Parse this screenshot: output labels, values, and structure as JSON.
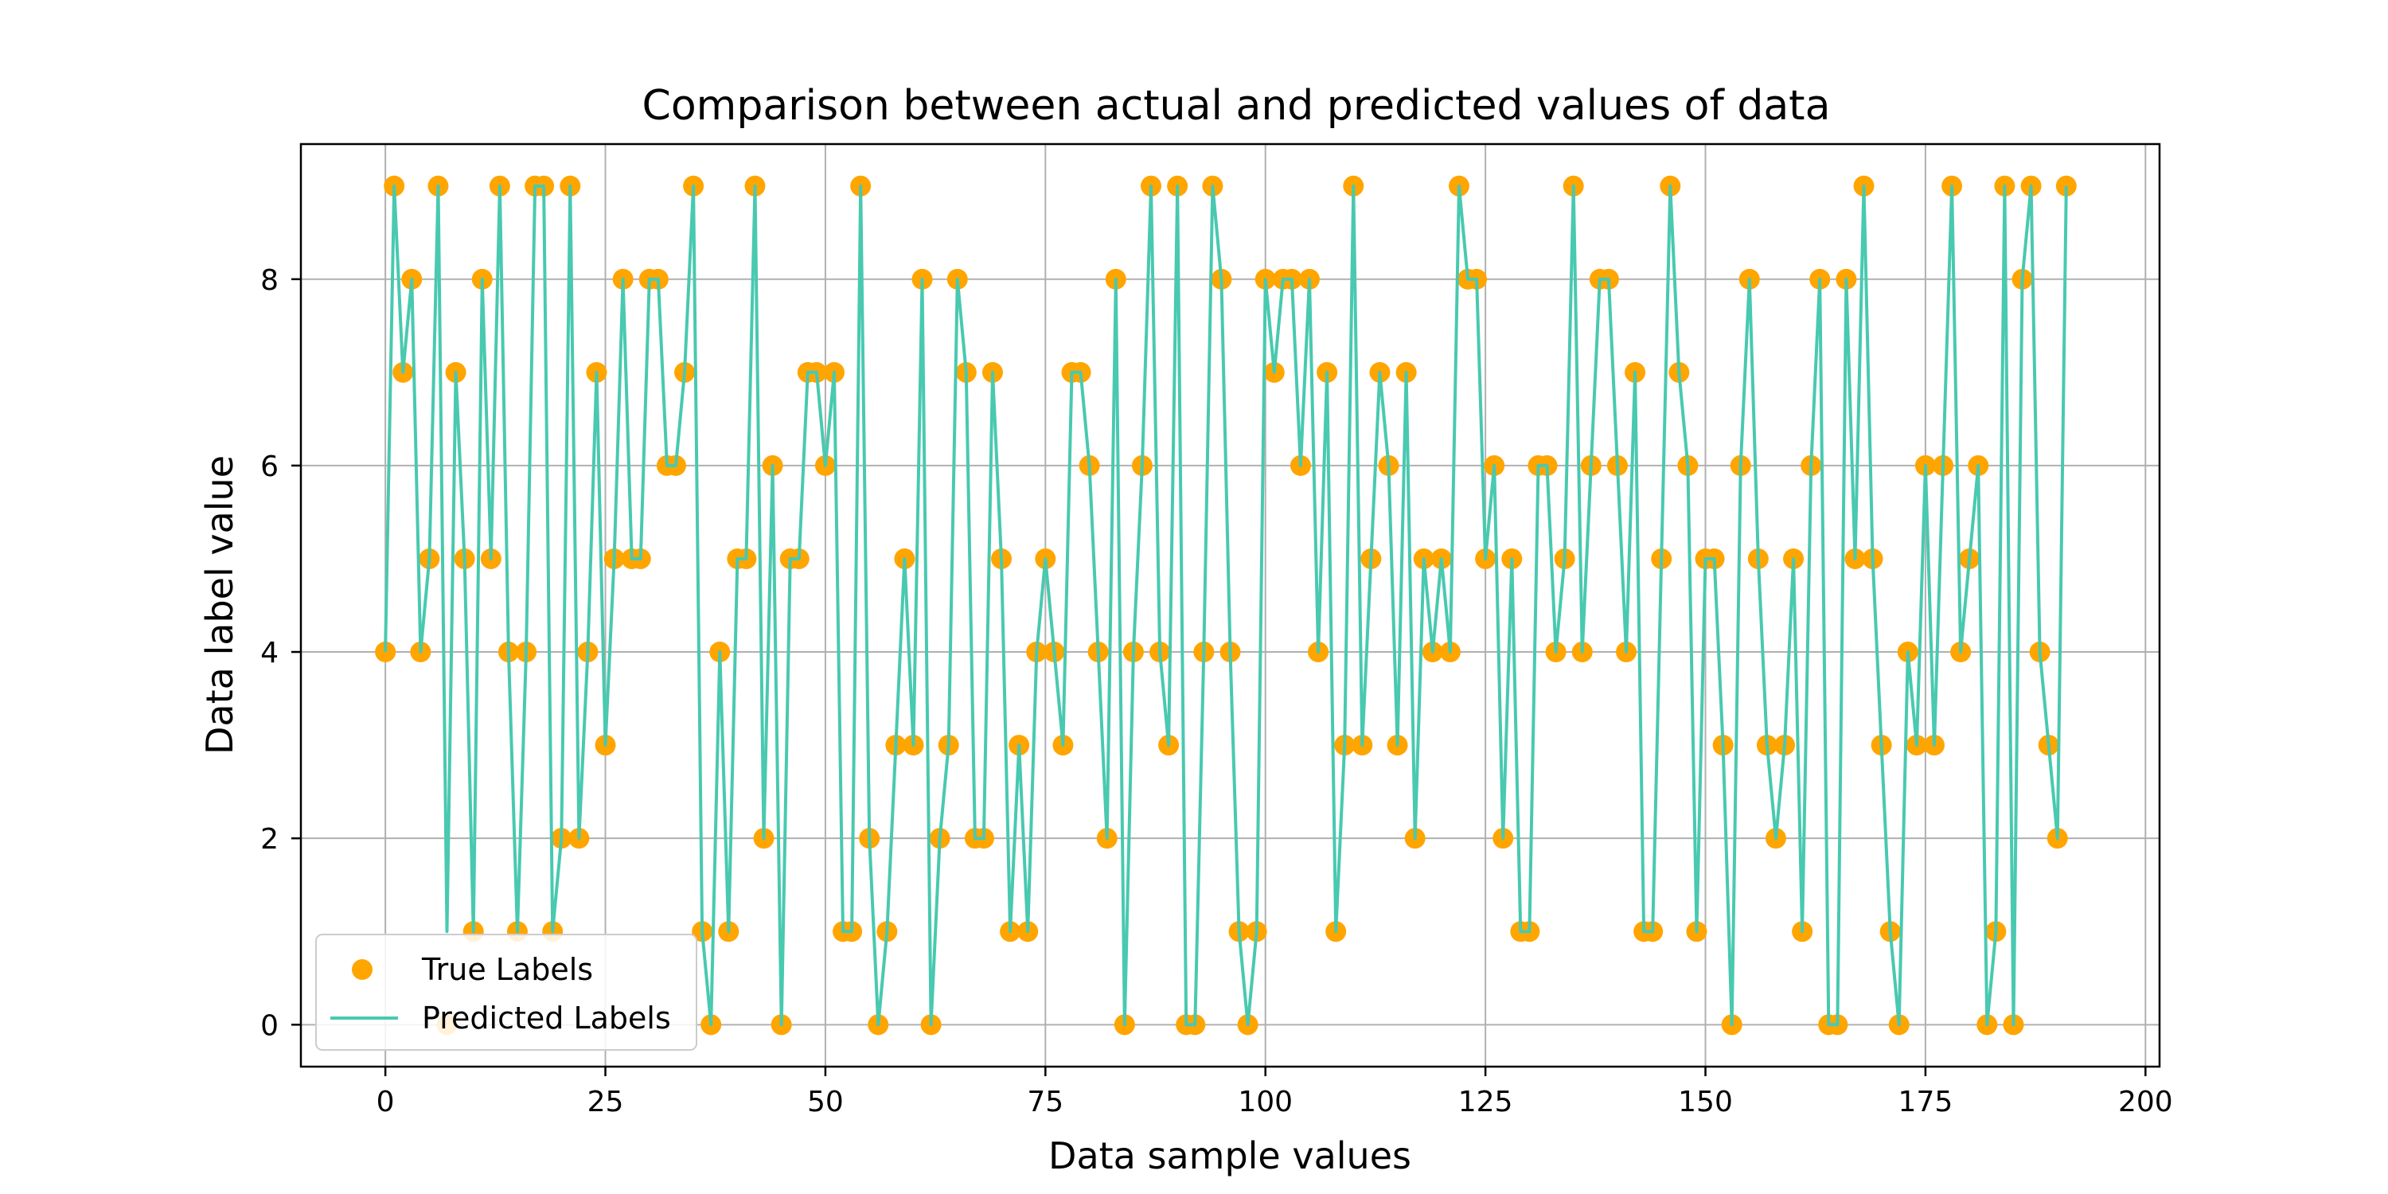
{
  "chart_data": {
    "type": "line",
    "title": "Comparison between actual and predicted values of data",
    "xlabel": "Data sample values",
    "ylabel": "Data label value",
    "xlim": [
      -9.6,
      201.6
    ],
    "ylim": [
      -0.45,
      9.45
    ],
    "xticks": [
      0,
      25,
      50,
      75,
      100,
      125,
      150,
      175,
      200
    ],
    "yticks": [
      0,
      2,
      4,
      6,
      8
    ],
    "grid": true,
    "legend_position": "lower-left",
    "series": [
      {
        "name": "True Labels",
        "kind": "scatter",
        "color": "#FFA500",
        "x": [
          0,
          1,
          2,
          3,
          4,
          5,
          6,
          7,
          8,
          9,
          10,
          11,
          12,
          13,
          14,
          15,
          16,
          17,
          18,
          19,
          20,
          21,
          22,
          23,
          24,
          25,
          26,
          27,
          28,
          29,
          30,
          31,
          32,
          33,
          34,
          35,
          36,
          37,
          38,
          39,
          40,
          41,
          42,
          43,
          44,
          45,
          46,
          47,
          48,
          49,
          50,
          51,
          52,
          53,
          54,
          55,
          56,
          57,
          58,
          59,
          60,
          61,
          62,
          63,
          64,
          65,
          66,
          67,
          68,
          69,
          70,
          71,
          72,
          73,
          74,
          75,
          76,
          77,
          78,
          79,
          80,
          81,
          82,
          83,
          84,
          85,
          86,
          87,
          88,
          89,
          90,
          91,
          92,
          93,
          94,
          95,
          96,
          97,
          98,
          99,
          100,
          101,
          102,
          103,
          104,
          105,
          106,
          107,
          108,
          109,
          110,
          111,
          112,
          113,
          114,
          115,
          116,
          117,
          118,
          119,
          120,
          121,
          122,
          123,
          124,
          125,
          126,
          127,
          128,
          129,
          130,
          131,
          132,
          133,
          134,
          135,
          136,
          137,
          138,
          139,
          140,
          141,
          142,
          143,
          144,
          145,
          146,
          147,
          148,
          149,
          150,
          151,
          152,
          153,
          154,
          155,
          156,
          157,
          158,
          159,
          160,
          161,
          162,
          163,
          164,
          165,
          166,
          167,
          168,
          169,
          170,
          171,
          172,
          173,
          174,
          175,
          176,
          177,
          178,
          179,
          180,
          181,
          182,
          183,
          184,
          185,
          186,
          187,
          188,
          189,
          190,
          191
        ],
        "values": [
          4,
          9,
          7,
          8,
          4,
          5,
          9,
          0,
          7,
          5,
          1,
          8,
          5,
          9,
          4,
          1,
          4,
          9,
          9,
          1,
          2,
          9,
          2,
          4,
          7,
          3,
          5,
          8,
          5,
          5,
          8,
          8,
          6,
          6,
          7,
          9,
          1,
          0,
          4,
          1,
          5,
          5,
          9,
          2,
          6,
          0,
          5,
          5,
          7,
          7,
          6,
          7,
          1,
          1,
          9,
          2,
          0,
          1,
          3,
          5,
          3,
          8,
          0,
          2,
          3,
          8,
          7,
          2,
          2,
          7,
          5,
          1,
          3,
          1,
          4,
          5,
          4,
          3,
          7,
          7,
          6,
          4,
          2,
          8,
          0,
          4,
          6,
          9,
          4,
          3,
          9,
          0,
          0,
          4,
          9,
          8,
          4,
          1,
          0,
          1,
          8,
          7,
          8,
          8,
          6,
          8,
          4,
          7,
          1,
          3,
          9,
          3,
          5,
          7,
          6,
          3,
          7,
          2,
          5,
          4,
          5,
          4,
          9,
          8,
          8,
          5,
          6,
          2,
          5,
          1,
          1,
          6,
          6,
          4,
          5,
          9,
          4,
          6,
          8,
          8,
          6,
          4,
          7,
          1,
          1,
          5,
          9,
          7,
          6,
          1,
          5,
          5,
          3,
          0,
          6,
          8,
          5,
          3,
          2,
          3,
          5,
          1,
          6,
          8,
          0,
          0,
          8,
          5,
          9,
          5,
          3,
          1,
          0,
          4,
          3,
          6,
          3,
          6,
          9,
          4,
          5,
          6,
          0,
          1,
          9,
          0,
          8,
          9,
          4,
          3,
          2,
          9
        ]
      },
      {
        "name": "Predicted Labels",
        "kind": "line",
        "color": "#48C9B0",
        "x": [
          0,
          1,
          2,
          3,
          4,
          5,
          6,
          7,
          8,
          9,
          10,
          11,
          12,
          13,
          14,
          15,
          16,
          17,
          18,
          19,
          20,
          21,
          22,
          23,
          24,
          25,
          26,
          27,
          28,
          29,
          30,
          31,
          32,
          33,
          34,
          35,
          36,
          37,
          38,
          39,
          40,
          41,
          42,
          43,
          44,
          45,
          46,
          47,
          48,
          49,
          50,
          51,
          52,
          53,
          54,
          55,
          56,
          57,
          58,
          59,
          60,
          61,
          62,
          63,
          64,
          65,
          66,
          67,
          68,
          69,
          70,
          71,
          72,
          73,
          74,
          75,
          76,
          77,
          78,
          79,
          80,
          81,
          82,
          83,
          84,
          85,
          86,
          87,
          88,
          89,
          90,
          91,
          92,
          93,
          94,
          95,
          96,
          97,
          98,
          99,
          100,
          101,
          102,
          103,
          104,
          105,
          106,
          107,
          108,
          109,
          110,
          111,
          112,
          113,
          114,
          115,
          116,
          117,
          118,
          119,
          120,
          121,
          122,
          123,
          124,
          125,
          126,
          127,
          128,
          129,
          130,
          131,
          132,
          133,
          134,
          135,
          136,
          137,
          138,
          139,
          140,
          141,
          142,
          143,
          144,
          145,
          146,
          147,
          148,
          149,
          150,
          151,
          152,
          153,
          154,
          155,
          156,
          157,
          158,
          159,
          160,
          161,
          162,
          163,
          164,
          165,
          166,
          167,
          168,
          169,
          170,
          171,
          172,
          173,
          174,
          175,
          176,
          177,
          178,
          179,
          180,
          181,
          182,
          183,
          184,
          185,
          186,
          187,
          188,
          189,
          190,
          191
        ],
        "values": [
          4,
          9,
          7,
          8,
          4,
          5,
          9,
          1,
          7,
          5,
          1,
          8,
          5,
          9,
          4,
          1,
          4,
          9,
          9,
          1,
          2,
          9,
          2,
          4,
          7,
          3,
          5,
          8,
          5,
          5,
          8,
          8,
          6,
          6,
          7,
          9,
          1,
          0,
          4,
          1,
          5,
          5,
          9,
          2,
          6,
          0,
          5,
          5,
          7,
          7,
          6,
          7,
          1,
          1,
          9,
          2,
          0,
          1,
          3,
          5,
          3,
          8,
          0,
          2,
          3,
          8,
          7,
          2,
          2,
          7,
          5,
          1,
          3,
          1,
          4,
          5,
          4,
          3,
          7,
          7,
          6,
          4,
          2,
          8,
          0,
          4,
          6,
          9,
          4,
          3,
          9,
          0,
          0,
          4,
          9,
          8,
          4,
          1,
          0,
          1,
          8,
          7,
          8,
          8,
          6,
          8,
          4,
          7,
          1,
          3,
          9,
          3,
          5,
          7,
          6,
          3,
          7,
          2,
          5,
          4,
          5,
          4,
          9,
          8,
          8,
          5,
          6,
          2,
          5,
          1,
          1,
          6,
          6,
          4,
          5,
          9,
          4,
          6,
          8,
          8,
          6,
          4,
          7,
          1,
          1,
          5,
          9,
          7,
          6,
          1,
          5,
          5,
          3,
          0,
          6,
          8,
          5,
          3,
          2,
          3,
          5,
          1,
          6,
          8,
          0,
          0,
          8,
          5,
          9,
          5,
          3,
          1,
          0,
          4,
          3,
          6,
          3,
          6,
          9,
          4,
          5,
          6,
          0,
          1,
          9,
          0,
          8,
          9,
          4,
          3,
          2,
          9
        ]
      }
    ]
  }
}
